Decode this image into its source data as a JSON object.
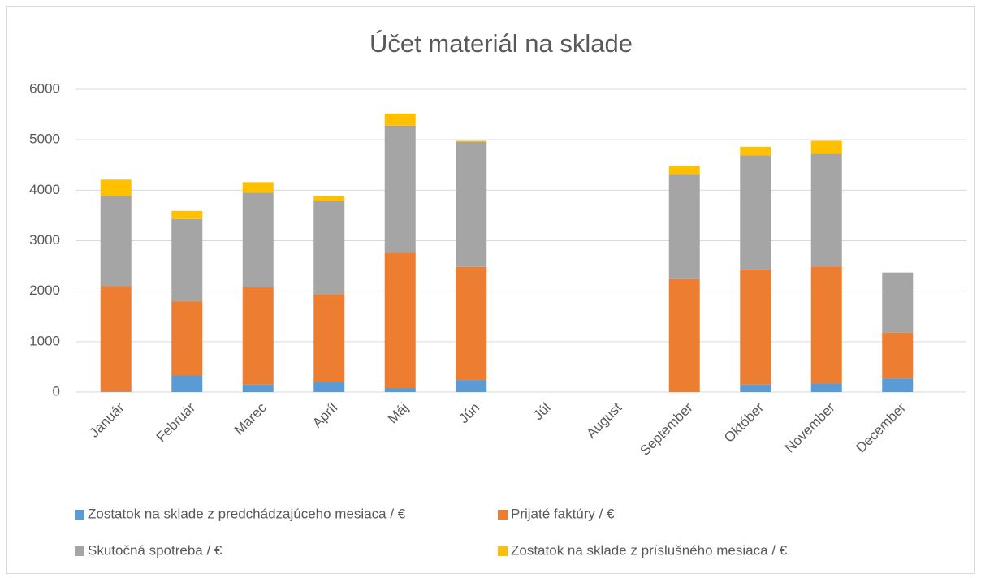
{
  "chart_data": {
    "type": "stacked_bar",
    "title": "Účet materiál na sklade",
    "categories": [
      "Január",
      "Február",
      "Marec",
      "Apríl",
      "Máj",
      "Jún",
      "Júl",
      "August",
      "September",
      "Október",
      "November",
      "December"
    ],
    "series": [
      {
        "name": "Zostatok na sklade z predchádzajúceho mesiaca / €",
        "color": "#5b9bd5",
        "values": [
          10,
          330,
          150,
          200,
          80,
          240,
          0,
          0,
          0,
          150,
          170,
          270
        ]
      },
      {
        "name": "Prijaté faktúry / €",
        "color": "#ed7d31",
        "values": [
          2090,
          1470,
          1930,
          1740,
          2680,
          2240,
          0,
          0,
          2240,
          2280,
          2320,
          910
        ]
      },
      {
        "name": "Skutočná spotreba / €",
        "color": "#a5a5a5",
        "values": [
          1780,
          1630,
          1870,
          1850,
          2520,
          2480,
          0,
          0,
          2080,
          2260,
          2230,
          1190
        ]
      },
      {
        "name": "Zostatok na sklade z príslušného mesiaca / €",
        "color": "#ffc000",
        "values": [
          330,
          160,
          210,
          90,
          240,
          20,
          0,
          0,
          160,
          170,
          260,
          0
        ]
      }
    ],
    "ylim": [
      0,
      6000
    ],
    "yticks": [
      0,
      1000,
      2000,
      3000,
      4000,
      5000,
      6000
    ],
    "grid": true,
    "legend": "bottom"
  }
}
